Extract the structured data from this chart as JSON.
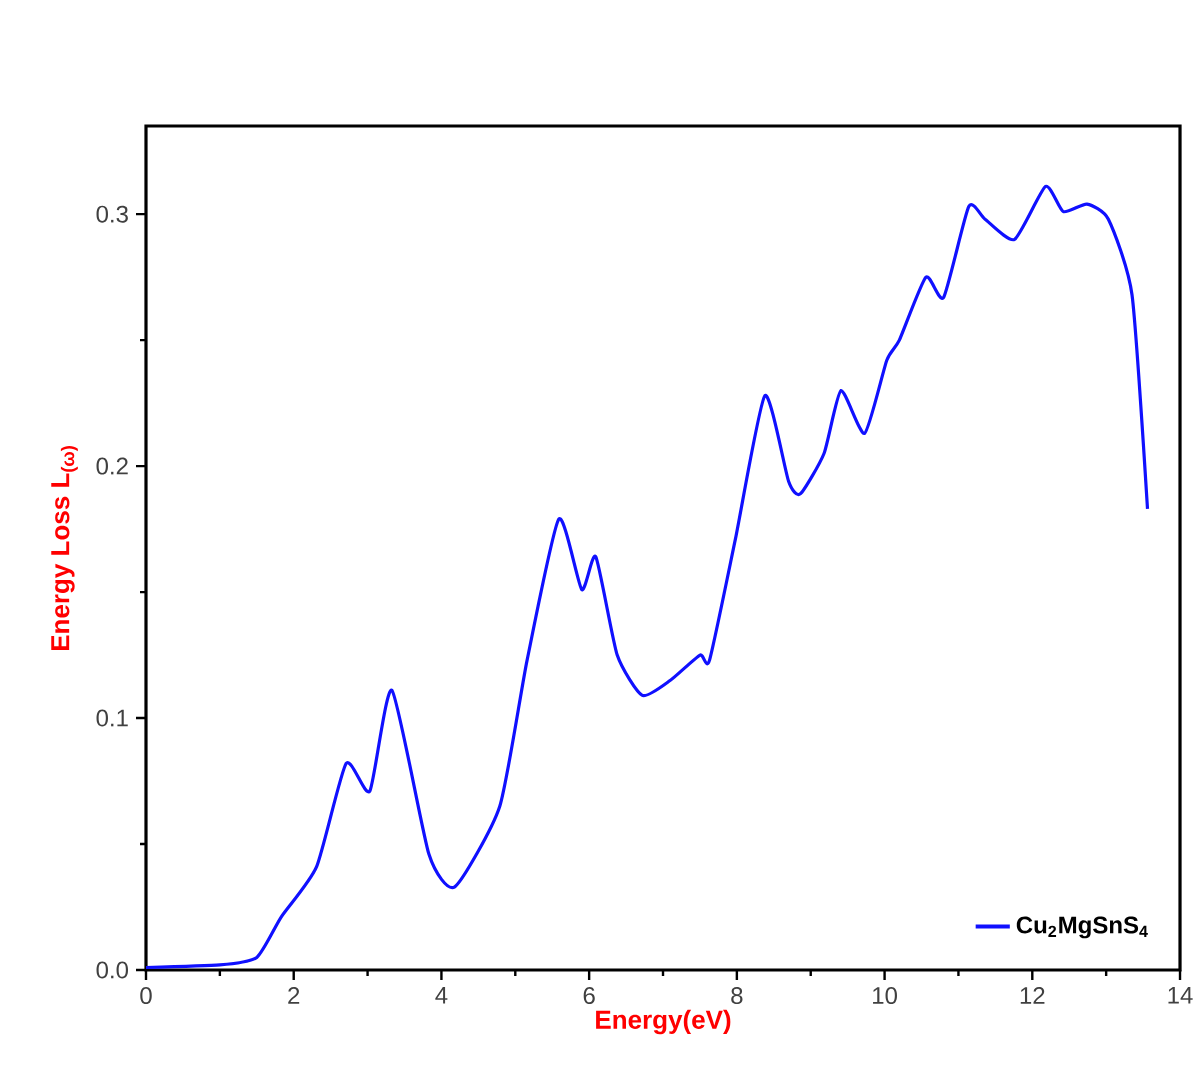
{
  "chart_data": {
    "type": "line",
    "xlabel": "Energy(eV)",
    "ylabel": "Energy Loss L$_{(ω)}$",
    "xlim": [
      0,
      14
    ],
    "ylim": [
      0,
      0.335
    ],
    "xticks": [
      0,
      2,
      4,
      6,
      8,
      10,
      12,
      14
    ],
    "yticks": [
      {
        "value": 0,
        "label": "0.0"
      },
      0.1,
      0.2,
      0.3
    ],
    "legend": "bottom right",
    "grid": false,
    "series": [
      {
        "name": "Cu$_{2}$MgSnS$_{4}$",
        "color": "#1010ff",
        "x": [
          0,
          1.0,
          1.5,
          1.83,
          2.31,
          2.71,
          3.03,
          3.33,
          3.83,
          4.18,
          4.79,
          5.16,
          5.59,
          5.9,
          6.09,
          6.38,
          6.72,
          7.1,
          7.5,
          7.63,
          7.98,
          8.38,
          8.7,
          8.86,
          9.18,
          9.41,
          9.73,
          10.03,
          10.2,
          10.56,
          10.8,
          11.14,
          11.36,
          11.76,
          12.18,
          12.42,
          12.74,
          13.03,
          13.35,
          13.56
        ],
        "values": [
          0.001,
          0.002,
          0.005,
          0.021,
          0.041,
          0.082,
          0.071,
          0.111,
          0.046,
          0.033,
          0.065,
          0.123,
          0.179,
          0.151,
          0.164,
          0.125,
          0.109,
          0.115,
          0.125,
          0.123,
          0.171,
          0.228,
          0.194,
          0.189,
          0.205,
          0.23,
          0.213,
          0.242,
          0.25,
          0.275,
          0.267,
          0.303,
          0.298,
          0.29,
          0.311,
          0.301,
          0.304,
          0.298,
          0.268,
          0.183
        ]
      }
    ]
  }
}
